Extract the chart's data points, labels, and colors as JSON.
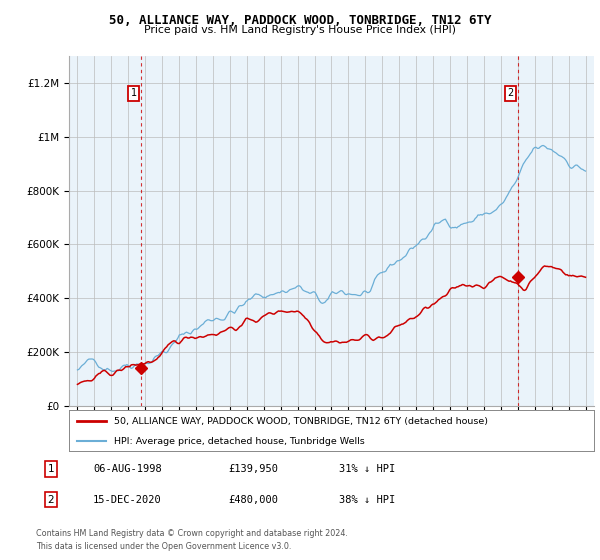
{
  "title": "50, ALLIANCE WAY, PADDOCK WOOD, TONBRIDGE, TN12 6TY",
  "subtitle": "Price paid vs. HM Land Registry's House Price Index (HPI)",
  "xlim": [
    1994.5,
    2025.5
  ],
  "ylim": [
    0,
    1300000
  ],
  "yticks": [
    0,
    200000,
    400000,
    600000,
    800000,
    1000000,
    1200000
  ],
  "ytick_labels": [
    "£0",
    "£200K",
    "£400K",
    "£600K",
    "£800K",
    "£1M",
    "£1.2M"
  ],
  "xticks": [
    1995,
    1996,
    1997,
    1998,
    1999,
    2000,
    2001,
    2002,
    2003,
    2004,
    2005,
    2006,
    2007,
    2008,
    2009,
    2010,
    2011,
    2012,
    2013,
    2014,
    2015,
    2016,
    2017,
    2018,
    2019,
    2020,
    2021,
    2022,
    2023,
    2024,
    2025
  ],
  "hpi_color": "#6BAED6",
  "price_color": "#CC0000",
  "plot_bg_color": "#EAF3FA",
  "sale1_year": 1998.75,
  "sale1_price": 139950,
  "sale2_year": 2021.0,
  "sale2_price": 480000,
  "legend_line1": "50, ALLIANCE WAY, PADDOCK WOOD, TONBRIDGE, TN12 6TY (detached house)",
  "legend_line2": "HPI: Average price, detached house, Tunbridge Wells",
  "annotation1_num": "1",
  "annotation1_date": "06-AUG-1998",
  "annotation1_price": "£139,950",
  "annotation1_hpi": "31% ↓ HPI",
  "annotation2_num": "2",
  "annotation2_date": "15-DEC-2020",
  "annotation2_price": "£480,000",
  "annotation2_hpi": "38% ↓ HPI",
  "footer": "Contains HM Land Registry data © Crown copyright and database right 2024.\nThis data is licensed under the Open Government Licence v3.0.",
  "background_color": "#FFFFFF",
  "grid_color": "#BBBBBB"
}
